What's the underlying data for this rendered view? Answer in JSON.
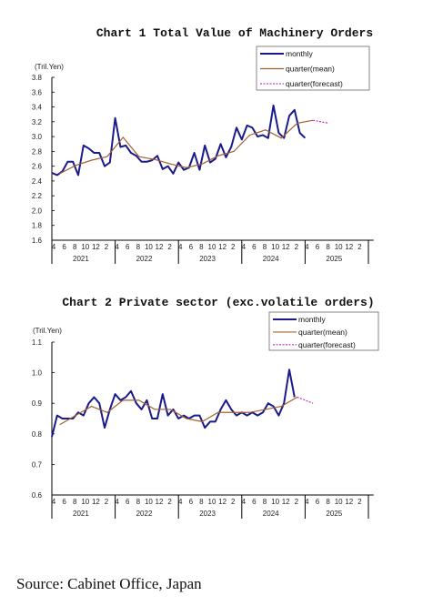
{
  "source": "Source: Cabinet Office, Japan",
  "chart_data": [
    {
      "type": "line",
      "title": "Chart 1 Total Value of Machinery Orders",
      "unit_label": "(Tril.Yen)",
      "ylim": [
        1.6,
        3.8
      ],
      "y_ticks": [
        "1.6",
        "1.8",
        "2.0",
        "2.2",
        "2.4",
        "2.6",
        "2.8",
        "3.0",
        "3.2",
        "3.4",
        "3.6",
        "3.8"
      ],
      "month_ticks": [
        "4",
        "6",
        "8",
        "10",
        "12",
        "2"
      ],
      "x_labels": [
        "2021",
        "2022",
        "2023",
        "2024",
        "2025"
      ],
      "grid": false,
      "legend_position": "top-right",
      "series": [
        {
          "name": "monthly",
          "color": "#1a1a8c",
          "values": [
            2.51,
            2.48,
            2.53,
            2.66,
            2.66,
            2.48,
            2.88,
            2.84,
            2.78,
            2.78,
            2.6,
            2.65,
            3.25,
            2.86,
            2.88,
            2.78,
            2.74,
            2.66,
            2.66,
            2.68,
            2.74,
            2.56,
            2.6,
            2.5,
            2.65,
            2.55,
            2.58,
            2.78,
            2.55,
            2.88,
            2.65,
            2.7,
            2.9,
            2.72,
            2.86,
            3.12,
            2.96,
            3.15,
            3.12,
            3.0,
            3.02,
            2.98,
            3.42,
            3.05,
            2.98,
            3.28,
            3.36,
            3.05,
            2.98
          ]
        },
        {
          "name": "quarter(mean)",
          "color": "#a0622d",
          "values": [
            2.5,
            2.61,
            2.68,
            2.73,
            2.99,
            2.73,
            2.69,
            2.63,
            2.58,
            2.63,
            2.74,
            2.8,
            3.02,
            3.09,
            2.98,
            3.18,
            3.22
          ]
        },
        {
          "name": "quarter(forecast)",
          "color": "#c02cc0",
          "values": [
            3.22,
            3.18
          ]
        }
      ]
    },
    {
      "type": "line",
      "title": "Chart 2 Private sector (exc.volatile orders)",
      "unit_label": "(Tril.Yen)",
      "ylim": [
        0.6,
        1.1
      ],
      "y_ticks": [
        "0.6",
        "0.7",
        "0.8",
        "0.9",
        "1.0",
        "1.1"
      ],
      "month_ticks": [
        "4",
        "6",
        "8",
        "10",
        "12",
        "2"
      ],
      "x_labels": [
        "2021",
        "2022",
        "2023",
        "2024",
        "2025"
      ],
      "grid": false,
      "legend_position": "top-right",
      "series": [
        {
          "name": "monthly",
          "color": "#1a1a8c",
          "values": [
            0.79,
            0.86,
            0.85,
            0.85,
            0.85,
            0.87,
            0.86,
            0.9,
            0.92,
            0.9,
            0.82,
            0.88,
            0.93,
            0.91,
            0.92,
            0.94,
            0.9,
            0.88,
            0.91,
            0.85,
            0.85,
            0.93,
            0.86,
            0.88,
            0.85,
            0.86,
            0.85,
            0.86,
            0.86,
            0.82,
            0.84,
            0.84,
            0.88,
            0.91,
            0.88,
            0.86,
            0.87,
            0.86,
            0.87,
            0.86,
            0.87,
            0.9,
            0.89,
            0.86,
            0.9,
            1.01,
            0.92
          ]
        },
        {
          "name": "quarter(mean)",
          "color": "#a0622d",
          "values": [
            0.83,
            0.86,
            0.89,
            0.87,
            0.91,
            0.91,
            0.88,
            0.88,
            0.85,
            0.84,
            0.87,
            0.87,
            0.87,
            0.88,
            0.89,
            0.92
          ]
        },
        {
          "name": "quarter(forecast)",
          "color": "#c02cc0",
          "values": [
            0.92,
            0.9
          ]
        }
      ]
    }
  ]
}
